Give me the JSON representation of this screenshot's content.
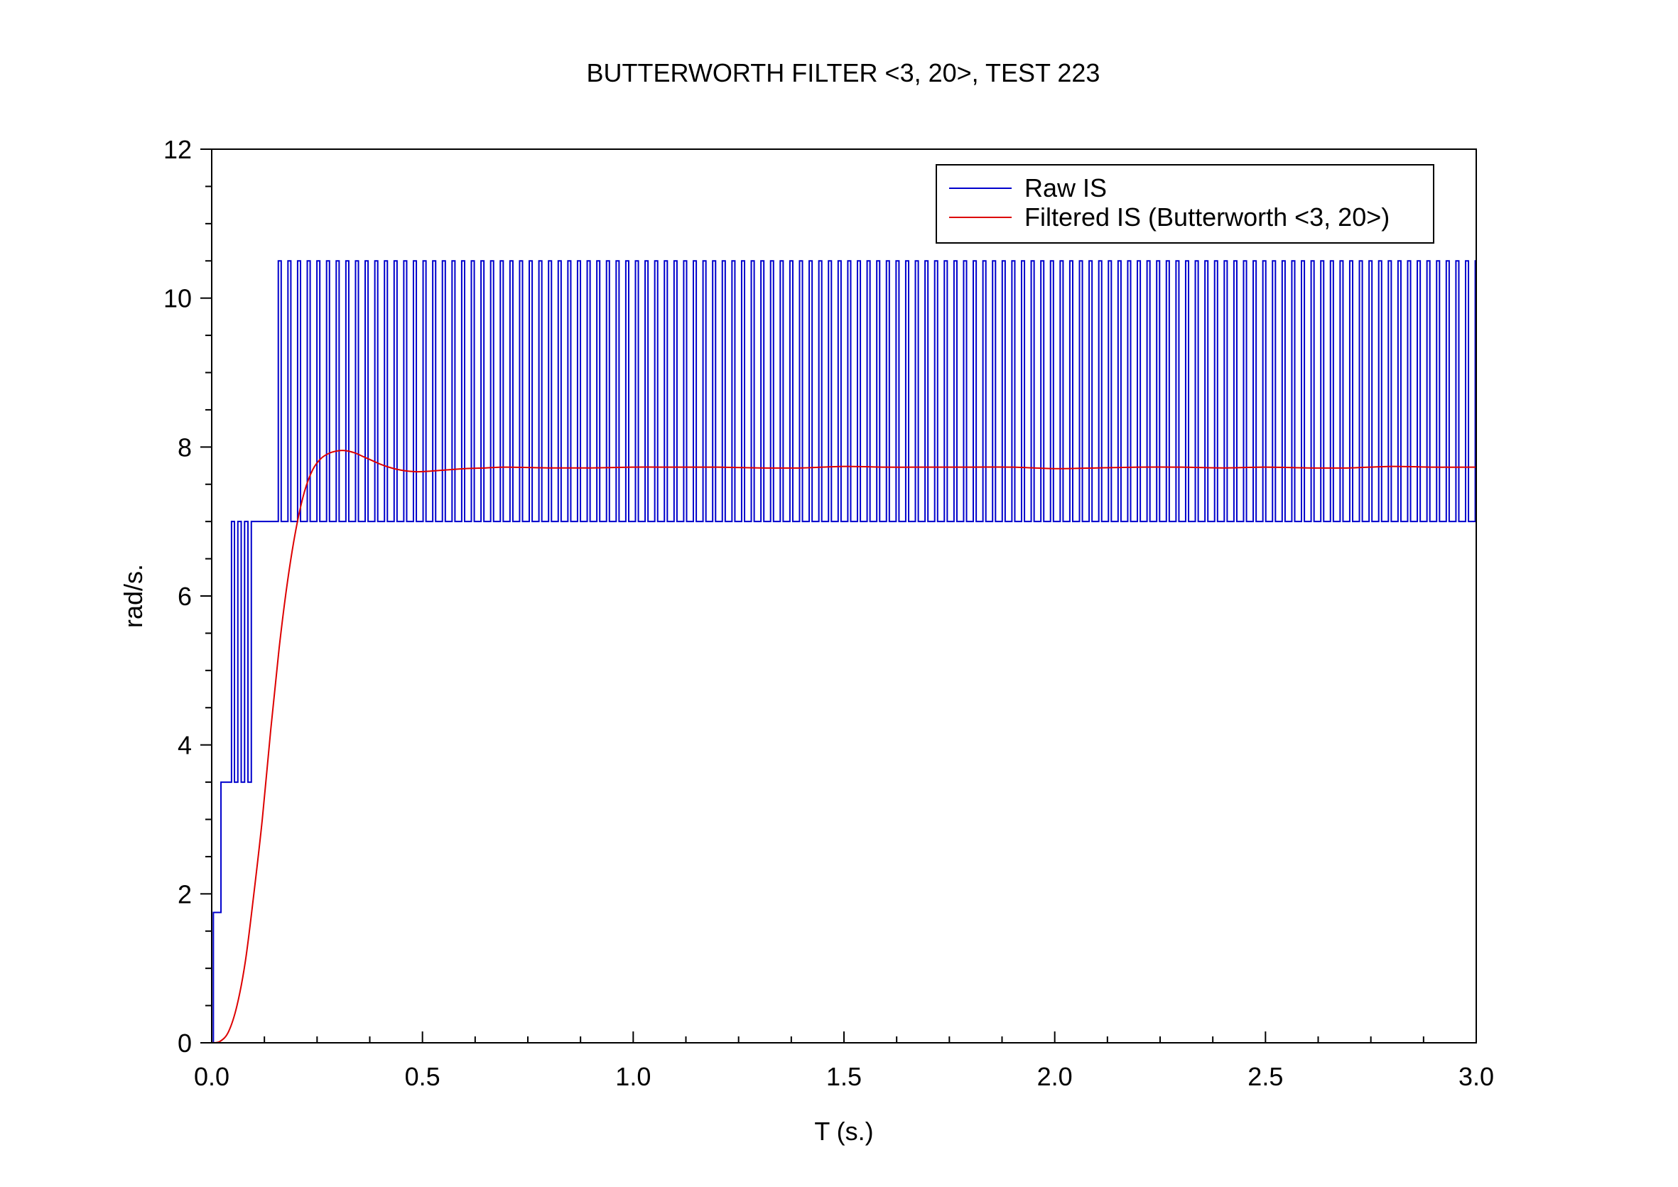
{
  "chart_data": {
    "type": "line",
    "title": "BUTTERWORTH FILTER <3, 20>, TEST 223",
    "xlabel": "T (s.)",
    "ylabel": "rad/s.",
    "xlim": [
      0,
      3.0
    ],
    "ylim": [
      0,
      12
    ],
    "x_ticks": [
      "0.0",
      "0.5",
      "1.0",
      "1.5",
      "2.0",
      "2.5",
      "3.0"
    ],
    "y_ticks": [
      "0",
      "2",
      "4",
      "6",
      "8",
      "10",
      "12"
    ],
    "grid": false,
    "legend_position": "top-right",
    "series": [
      {
        "name": "Raw IS",
        "color": "#0000cc",
        "style": "step",
        "points": [
          [
            0.0,
            0
          ],
          [
            0.004,
            1.75
          ],
          [
            0.02,
            1.75
          ],
          [
            0.022,
            3.5
          ],
          [
            0.045,
            3.5
          ],
          [
            0.047,
            7.0
          ],
          [
            0.052,
            7.0
          ],
          [
            0.054,
            3.5
          ],
          [
            0.06,
            3.5
          ],
          [
            0.062,
            7.0
          ],
          [
            0.068,
            7.0
          ],
          [
            0.07,
            3.5
          ],
          [
            0.076,
            3.5
          ],
          [
            0.078,
            7.0
          ],
          [
            0.084,
            7.0
          ],
          [
            0.086,
            3.5
          ],
          [
            0.092,
            3.5
          ],
          [
            0.094,
            7.0
          ],
          [
            0.158,
            7.0
          ]
        ],
        "pulses": {
          "start": 0.158,
          "end": 3.0,
          "period": 0.0229,
          "duty": 0.3,
          "base": 7.0,
          "peak": 10.5
        }
      },
      {
        "name": "Filtered IS (Butterworth <3, 20>)",
        "color": "#dd0000",
        "style": "line",
        "points": [
          [
            0.0,
            0
          ],
          [
            0.02,
            0.02
          ],
          [
            0.04,
            0.15
          ],
          [
            0.06,
            0.5
          ],
          [
            0.08,
            1.1
          ],
          [
            0.1,
            2.0
          ],
          [
            0.12,
            3.0
          ],
          [
            0.14,
            4.2
          ],
          [
            0.16,
            5.3
          ],
          [
            0.18,
            6.2
          ],
          [
            0.2,
            6.9
          ],
          [
            0.22,
            7.4
          ],
          [
            0.24,
            7.7
          ],
          [
            0.26,
            7.85
          ],
          [
            0.28,
            7.92
          ],
          [
            0.3,
            7.95
          ],
          [
            0.32,
            7.95
          ],
          [
            0.34,
            7.92
          ],
          [
            0.36,
            7.87
          ],
          [
            0.38,
            7.82
          ],
          [
            0.4,
            7.77
          ],
          [
            0.42,
            7.73
          ],
          [
            0.44,
            7.7
          ],
          [
            0.46,
            7.68
          ],
          [
            0.48,
            7.67
          ],
          [
            0.5,
            7.67
          ],
          [
            0.55,
            7.69
          ],
          [
            0.6,
            7.71
          ],
          [
            0.65,
            7.72
          ],
          [
            0.7,
            7.73
          ],
          [
            0.8,
            7.72
          ],
          [
            0.9,
            7.72
          ],
          [
            1.0,
            7.73
          ],
          [
            1.1,
            7.73
          ],
          [
            1.2,
            7.73
          ],
          [
            1.3,
            7.72
          ],
          [
            1.4,
            7.72
          ],
          [
            1.5,
            7.74
          ],
          [
            1.6,
            7.73
          ],
          [
            1.7,
            7.73
          ],
          [
            1.8,
            7.73
          ],
          [
            1.9,
            7.73
          ],
          [
            2.0,
            7.71
          ],
          [
            2.1,
            7.72
          ],
          [
            2.2,
            7.73
          ],
          [
            2.3,
            7.73
          ],
          [
            2.4,
            7.72
          ],
          [
            2.5,
            7.73
          ],
          [
            2.6,
            7.72
          ],
          [
            2.7,
            7.72
          ],
          [
            2.8,
            7.74
          ],
          [
            2.9,
            7.73
          ],
          [
            3.0,
            7.73
          ]
        ]
      }
    ]
  }
}
